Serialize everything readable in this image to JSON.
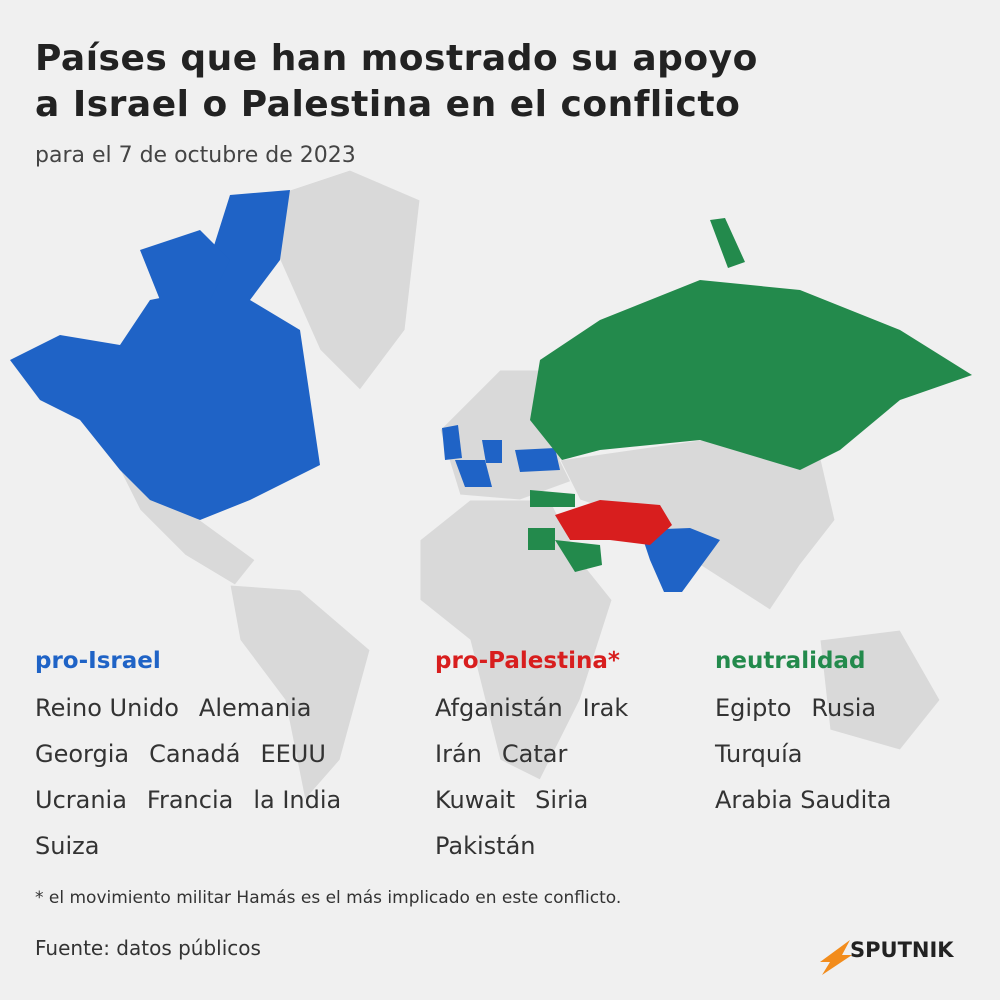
{
  "header": {
    "title": [
      "Países que han mostrado su apoyo",
      "a Israel o Palestina en el conflicto"
    ],
    "subtitle": "para el 7 de octubre de 2023"
  },
  "legend": {
    "groups": [
      {
        "label": "pro-Israel",
        "color": "#1f63c6",
        "rows": [
          [
            "Reino Unido",
            "Alemania"
          ],
          [
            "Georgia",
            "Canadá",
            "EEUU"
          ],
          [
            "Ucrania",
            "Francia",
            "la India"
          ],
          [
            "Suiza"
          ]
        ]
      },
      {
        "label": "pro-Palestina*",
        "color": "#d81e1e",
        "rows": [
          [
            "Afganistán",
            "Irak"
          ],
          [
            "Irán",
            "Catar"
          ],
          [
            "Kuwait",
            "Siria"
          ],
          [
            "Pakistán"
          ]
        ]
      },
      {
        "label": "neutralidad",
        "color": "#238a4c",
        "rows": [
          [
            "Egipto",
            "Rusia"
          ],
          [
            "Turquía"
          ],
          [
            "Arabia Saudita"
          ]
        ]
      }
    ]
  },
  "footnote": "* el movimiento militar Hamás es el más implicado en este conflicto.",
  "source": "Fuente: datos públicos",
  "brand": "SPUTNIK"
}
